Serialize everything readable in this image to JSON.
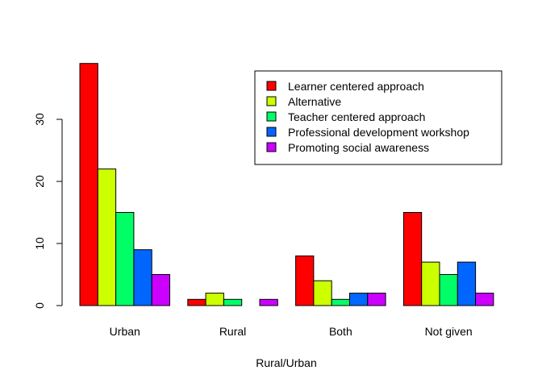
{
  "chart_data": {
    "type": "bar",
    "xlabel": "Rural/Urban",
    "ylabel": "",
    "ylim": [
      0,
      40
    ],
    "yticks": [
      0,
      10,
      20,
      30
    ],
    "grid": false,
    "legend_position": "top-right",
    "categories": [
      "Urban",
      "Rural",
      "Both",
      "Not given"
    ],
    "series": [
      {
        "name": "Learner centered approach",
        "color": "#FF0000",
        "values": [
          39,
          1,
          8,
          15
        ]
      },
      {
        "name": "Alternative",
        "color": "#CCFF00",
        "values": [
          22,
          2,
          4,
          7
        ]
      },
      {
        "name": "Teacher centered approach",
        "color": "#00FF66",
        "values": [
          15,
          1,
          1,
          5
        ]
      },
      {
        "name": "Professional development workshop",
        "color": "#0066FF",
        "values": [
          9,
          0,
          2,
          7
        ]
      },
      {
        "name": "Promoting social awareness",
        "color": "#CC00FF",
        "values": [
          5,
          1,
          2,
          2
        ]
      }
    ]
  }
}
